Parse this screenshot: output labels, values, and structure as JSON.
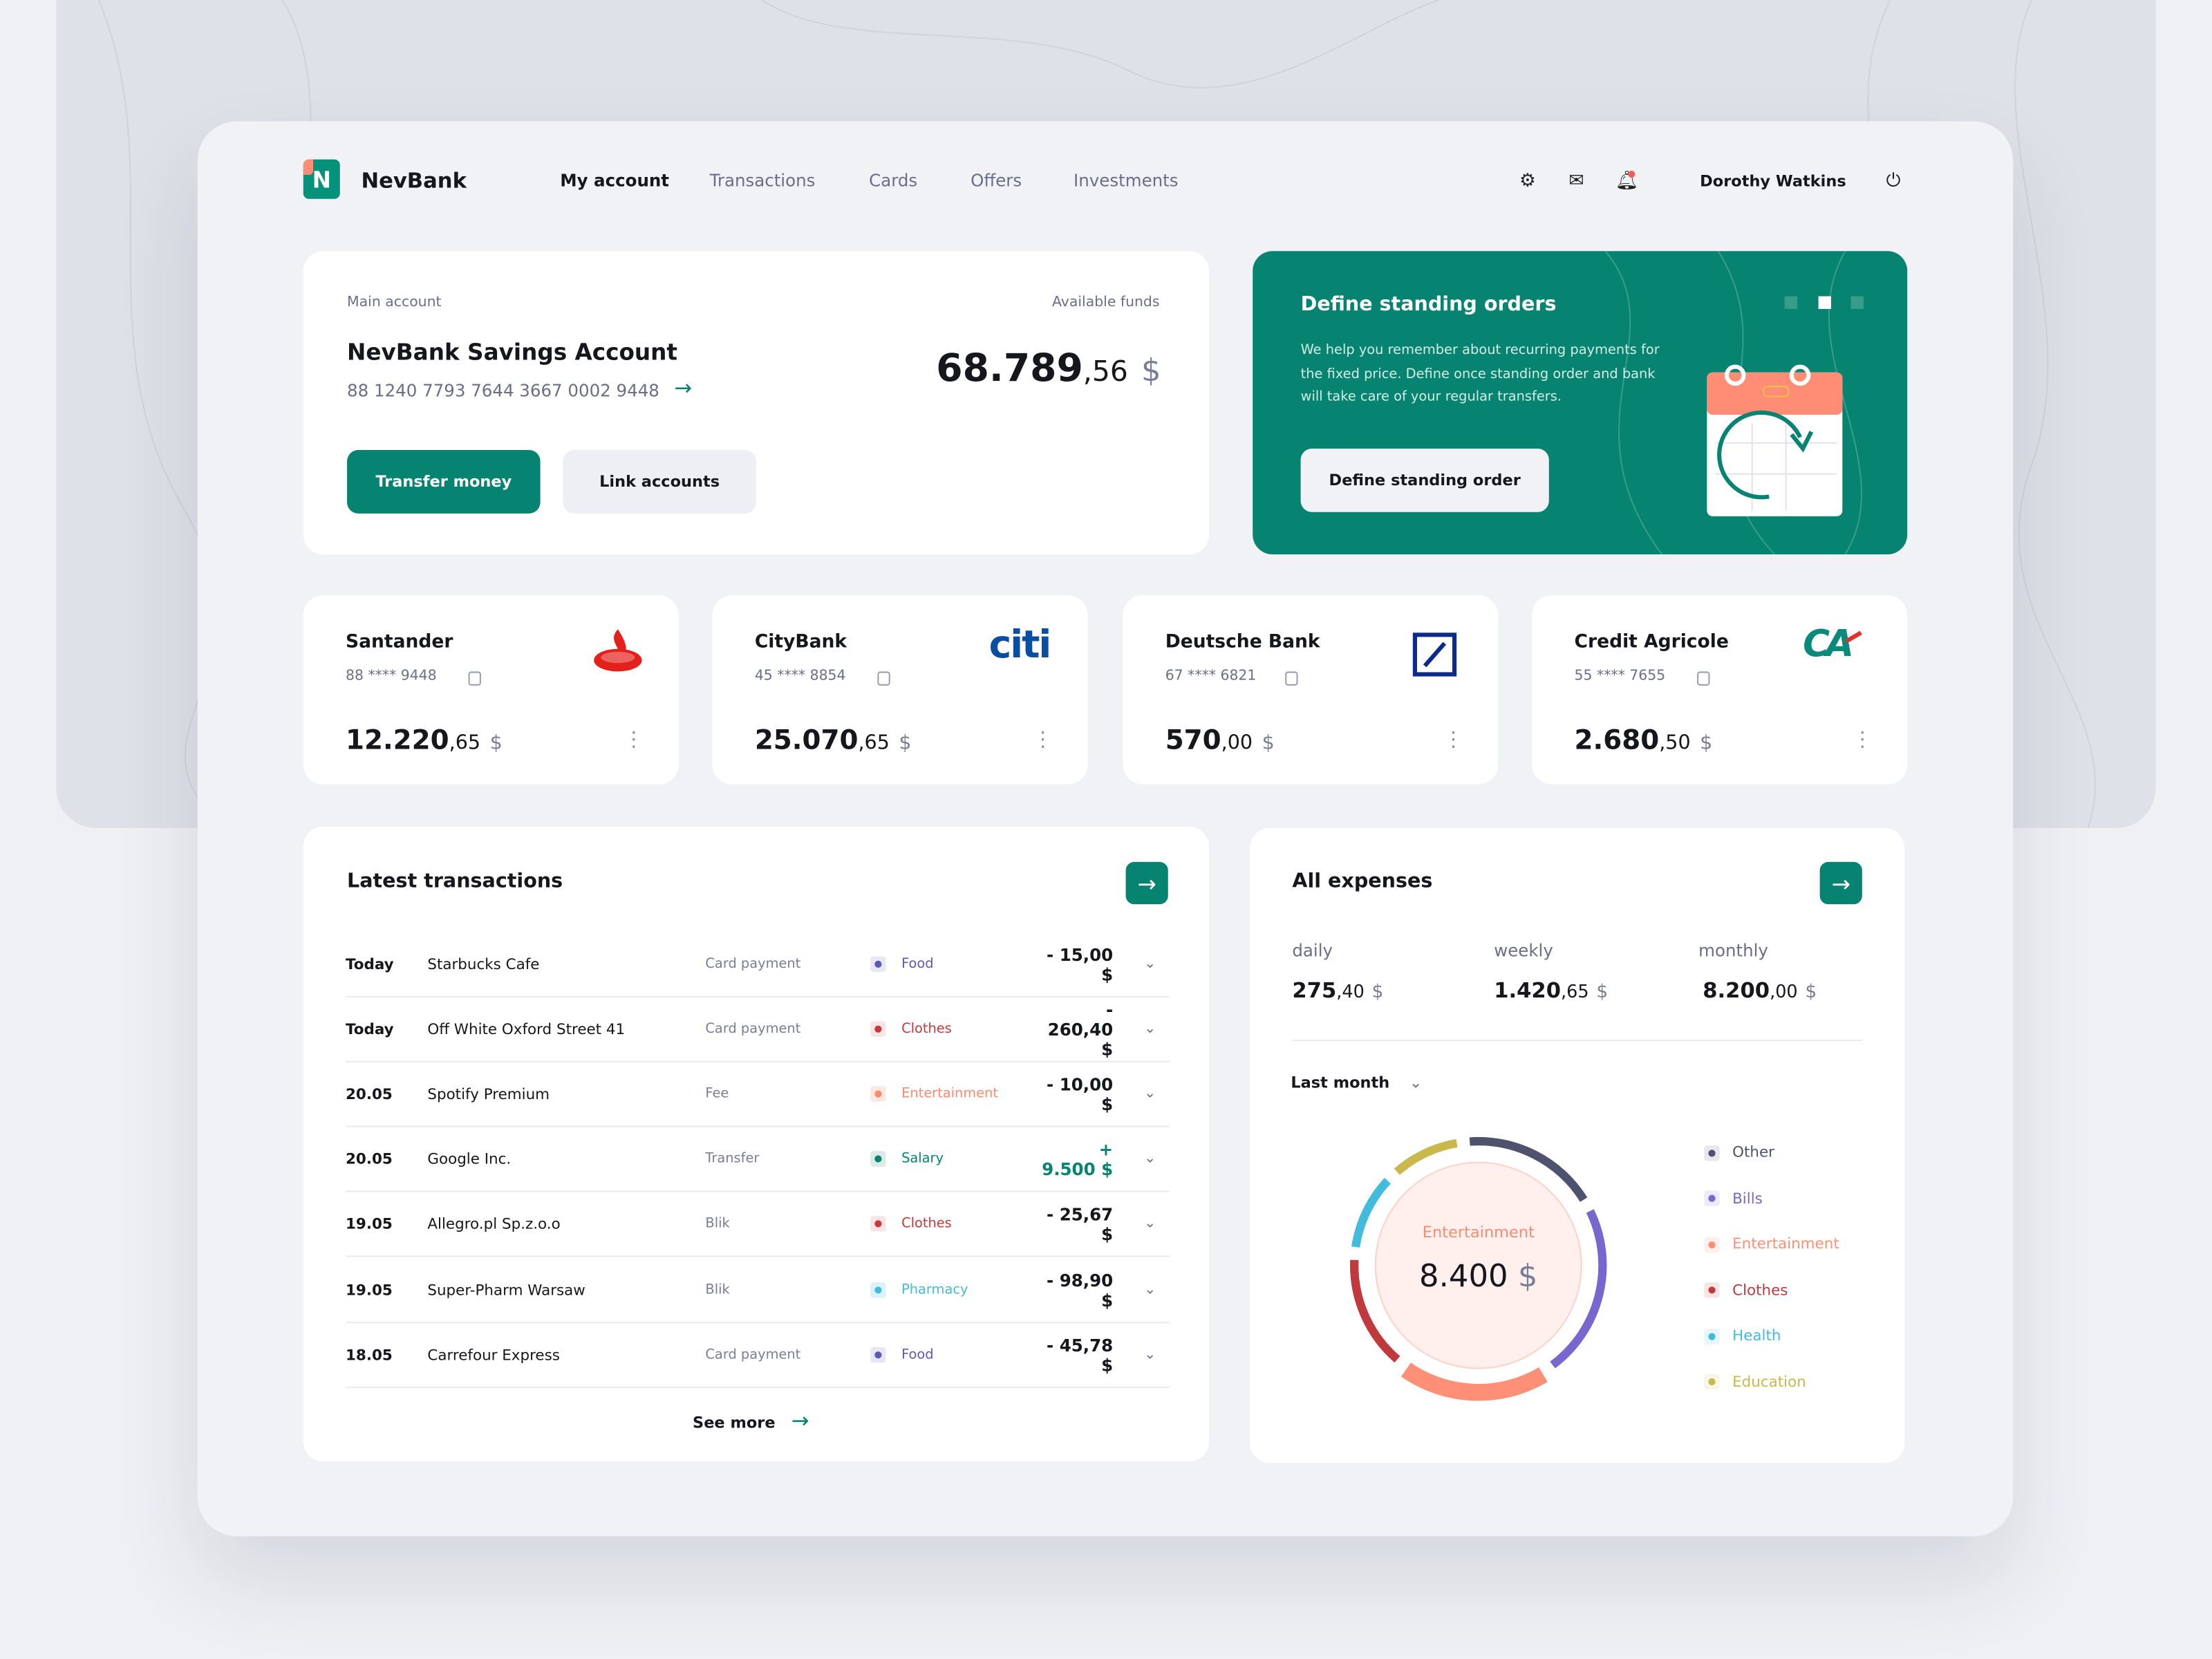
{
  "header": {
    "brand": "NevBank",
    "logo_letter": "N",
    "nav": [
      "My account",
      "Transactions",
      "Cards",
      "Offers",
      "Investments"
    ],
    "active_nav": "My account",
    "user": "Dorothy Watkins"
  },
  "main_account": {
    "label": "Main account",
    "name": "NevBank Savings Account",
    "number": "88 1240 7793 7644 3667 0002 9448",
    "funds_label": "Available funds",
    "balance_int": "68.789",
    "balance_dec": ",56",
    "currency": "$",
    "transfer_label": "Transfer money",
    "link_label": "Link accounts"
  },
  "promo": {
    "title": "Define standing orders",
    "text": "We help you remember about recurring payments for the fixed price. Define once standing order and bank will take care of your regular transfers.",
    "button": "Define standing order",
    "bg": "#078471",
    "slides": 3,
    "active_slide": 2
  },
  "banks": [
    {
      "name": "Santander",
      "number": "88 **** 9448",
      "int": "12.220",
      "dec": ",65",
      "currency": "$",
      "logo": "santander-logo"
    },
    {
      "name": "CityBank",
      "number": "45 **** 8854",
      "int": "25.070",
      "dec": ",65",
      "currency": "$",
      "logo": "citi-logo",
      "logo_text": "citi"
    },
    {
      "name": "Deutsche Bank",
      "number": "67 **** 6821",
      "int": "570",
      "dec": ",00",
      "currency": "$",
      "logo": "deutsche-bank-logo"
    },
    {
      "name": "Credit Agricole",
      "number": "55 **** 7655",
      "int": "2.680",
      "dec": ",50",
      "currency": "$",
      "logo": "credit-agricole-logo",
      "logo_text": "CA"
    }
  ],
  "transactions": {
    "title": "Latest transactions",
    "see_more": "See more",
    "rows": [
      {
        "date": "Today",
        "name": "Starbucks Cafe",
        "type": "Card payment",
        "category": "Food",
        "amount": "- 15,00 $",
        "color": "#5b5bb5",
        "bg": "#e8e8f5"
      },
      {
        "date": "Today",
        "name": "Off White Oxford Street 41",
        "type": "Card payment",
        "category": "Clothes",
        "amount": "- 260,40 $",
        "color": "#c9383b",
        "bg": "#f8e6e6"
      },
      {
        "date": "20.05",
        "name": "Spotify Premium",
        "type": "Fee",
        "category": "Entertainment",
        "amount": "- 10,00 $",
        "color": "#ff8a70",
        "bg": "#ffe8e2"
      },
      {
        "date": "20.05",
        "name": "Google Inc.",
        "type": "Transfer",
        "category": "Salary",
        "amount": "+ 9.500 $",
        "color": "#078471",
        "bg": "#dcebe7",
        "positive": true
      },
      {
        "date": "19.05",
        "name": "Allegro.pl Sp.z.o.o",
        "type": "Blik",
        "category": "Clothes",
        "amount": "- 25,67 $",
        "color": "#c9383b",
        "bg": "#f8e6e6"
      },
      {
        "date": "19.05",
        "name": "Super-Pharm Warsaw",
        "type": "Blik",
        "category": "Pharmacy",
        "amount": "- 98,90 $",
        "color": "#45bcdc",
        "bg": "#dcf1f8"
      },
      {
        "date": "18.05",
        "name": "Carrefour Express",
        "type": "Card payment",
        "category": "Food",
        "amount": "- 45,78 $",
        "color": "#5b5bb5",
        "bg": "#e8e8f5"
      }
    ]
  },
  "expenses": {
    "title": "All expenses",
    "periods": [
      {
        "label": "daily",
        "int": "275",
        "dec": ",40",
        "currency": "$"
      },
      {
        "label": "weekly",
        "int": "1.420",
        "dec": ",65",
        "currency": "$"
      },
      {
        "label": "monthly",
        "int": "8.200",
        "dec": ",00",
        "currency": "$"
      }
    ],
    "filter": "Last month",
    "center_label": "Entertainment",
    "center_value": "8.400",
    "center_currency": "$"
  },
  "chart_data": {
    "type": "pie",
    "variant": "donut",
    "highlighted": "Entertainment",
    "legend_position": "right",
    "slices": [
      {
        "name": "Other",
        "share_pct": 18,
        "color": "#4f526e"
      },
      {
        "name": "Bills",
        "share_pct": 23,
        "color": "#7a66cf"
      },
      {
        "name": "Entertainment",
        "share_pct": 19,
        "color": "#ff8f77"
      },
      {
        "name": "Clothes",
        "share_pct": 15,
        "color": "#c03a3d"
      },
      {
        "name": "Health",
        "share_pct": 10,
        "color": "#42bbdd"
      },
      {
        "name": "Education",
        "share_pct": 9,
        "color": "#cbb84c"
      }
    ]
  }
}
